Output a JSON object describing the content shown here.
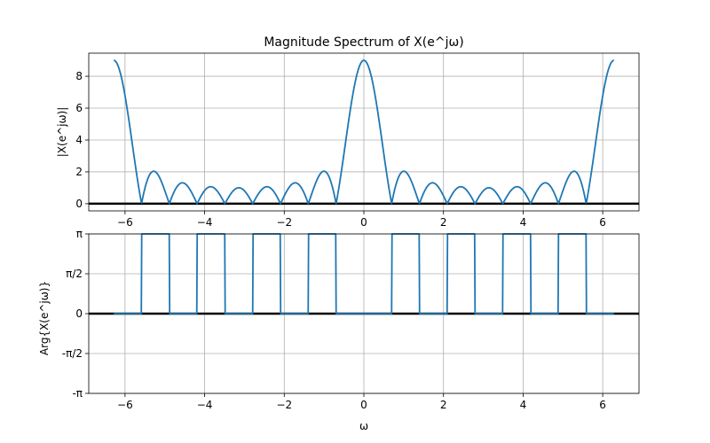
{
  "figure": {
    "background": "#ffffff"
  },
  "chart_data": [
    {
      "type": "line",
      "title": "Magnitude Spectrum of X(e^jω)",
      "xlabel": "",
      "ylabel": "|X(e^jω)|",
      "xlim": [
        -6.9115,
        6.9115
      ],
      "ylim": [
        -0.45,
        9.45
      ],
      "xticks": [
        -6,
        -4,
        -2,
        0,
        2,
        4,
        6
      ],
      "xtick_labels": [
        "−6",
        "−4",
        "−2",
        "0",
        "2",
        "4",
        "6"
      ],
      "yticks": [
        0,
        2,
        4,
        6,
        8
      ],
      "ytick_labels": [
        "0",
        "2",
        "4",
        "6",
        "8"
      ],
      "grid": true,
      "series": [
        {
          "color": "#1f77b4",
          "formula": "|sin(4.5ω)/sin(0.5ω)|",
          "x_range": [
            -6.2832,
            6.2832
          ],
          "samples": 1200
        }
      ],
      "reference_lines": [
        {
          "y": 0,
          "color": "#000000"
        }
      ]
    },
    {
      "type": "line",
      "title": "",
      "xlabel": "ω",
      "ylabel": "Arg{X(e^jω)}",
      "xlim": [
        -6.9115,
        6.9115
      ],
      "ylim": [
        -3.1416,
        3.1416
      ],
      "xticks": [
        -6,
        -4,
        -2,
        0,
        2,
        4,
        6
      ],
      "xtick_labels": [
        "−6",
        "−4",
        "−2",
        "0",
        "2",
        "4",
        "6"
      ],
      "yticks": [
        -3.1416,
        -1.5708,
        0,
        1.5708,
        3.1416
      ],
      "ytick_labels": [
        "-π",
        "-π/2",
        "0",
        "π/2",
        "π"
      ],
      "grid": true,
      "series": [
        {
          "color": "#1f77b4",
          "formula": "π if sin(4.5ω)/sin(0.5ω) < 0 else 0",
          "x_range": [
            -6.2832,
            6.2832
          ],
          "samples": 1200
        }
      ],
      "reference_lines": [
        {
          "y": 0,
          "color": "#000000"
        }
      ]
    }
  ]
}
